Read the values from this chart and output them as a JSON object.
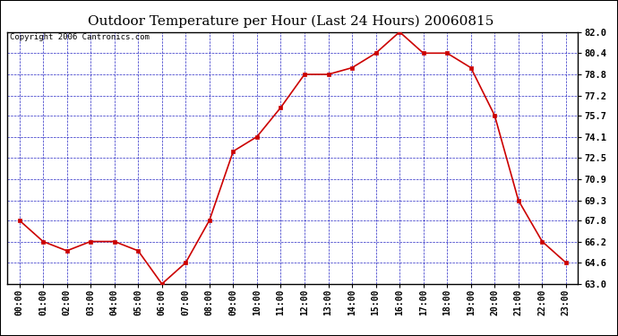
{
  "title": "Outdoor Temperature per Hour (Last 24 Hours) 20060815",
  "copyright_text": "Copyright 2006 Cantronics.com",
  "hours": [
    "00:00",
    "01:00",
    "02:00",
    "03:00",
    "04:00",
    "05:00",
    "06:00",
    "07:00",
    "08:00",
    "09:00",
    "10:00",
    "11:00",
    "12:00",
    "13:00",
    "14:00",
    "15:00",
    "16:00",
    "17:00",
    "18:00",
    "19:00",
    "20:00",
    "21:00",
    "22:00",
    "23:00"
  ],
  "temperatures": [
    67.8,
    66.2,
    65.5,
    66.2,
    66.2,
    65.5,
    63.0,
    64.6,
    67.8,
    73.0,
    74.1,
    76.3,
    78.8,
    78.8,
    79.3,
    80.4,
    82.0,
    80.4,
    80.4,
    79.3,
    75.7,
    69.3,
    66.2,
    64.6
  ],
  "line_color": "#cc0000",
  "marker_color": "#cc0000",
  "background_color": "#ffffff",
  "plot_bg_color": "#ffffff",
  "grid_color": "#0000bb",
  "border_color": "#000000",
  "ylim": [
    63.0,
    82.0
  ],
  "yticks": [
    63.0,
    64.6,
    66.2,
    67.8,
    69.3,
    70.9,
    72.5,
    74.1,
    75.7,
    77.2,
    78.8,
    80.4,
    82.0
  ],
  "title_fontsize": 11,
  "copyright_fontsize": 6.5,
  "tick_fontsize": 7,
  "ytick_fontsize": 7.5
}
